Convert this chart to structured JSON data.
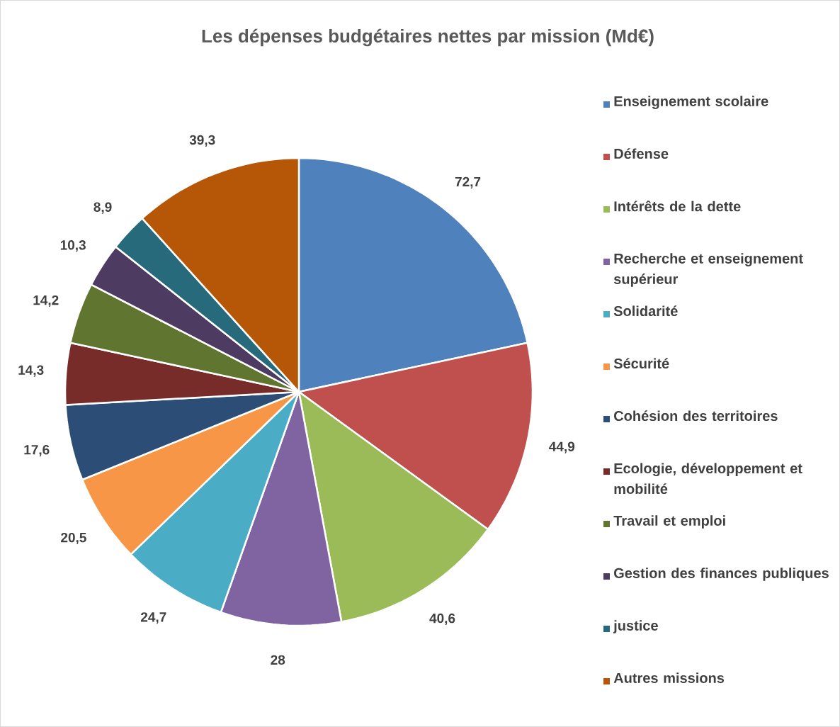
{
  "chart_data": {
    "type": "pie",
    "title": "Les dépenses budgétaires nettes par mission (Md€)",
    "categories": [
      "Enseignement scolaire",
      "Défense",
      "Intérêts de la dette",
      "Recherche et enseignement supérieur",
      "Solidarité",
      "Sécurité",
      "Cohésion des territoires",
      "Ecologie, développement et mobilité",
      "Travail et emploi",
      "Gestion des finances publiques",
      "justice",
      "Autres missions"
    ],
    "values": [
      72.7,
      44.9,
      40.6,
      28,
      24.7,
      20.5,
      17.6,
      14.3,
      14.2,
      10.3,
      8.9,
      39.3
    ],
    "colors": [
      "#4f81bd",
      "#c0504d",
      "#9bbb59",
      "#8064a2",
      "#4bacc6",
      "#f79646",
      "#2c4d75",
      "#772c2a",
      "#5f7530",
      "#4d3b62",
      "#276a7c",
      "#b65708"
    ],
    "value_labels": [
      "72,7",
      "44,9",
      "40,6",
      "28",
      "24,7",
      "20,5",
      "17,6",
      "14,3",
      "14,2",
      "10,3",
      "8,9",
      "39,3"
    ],
    "legend": "right"
  }
}
